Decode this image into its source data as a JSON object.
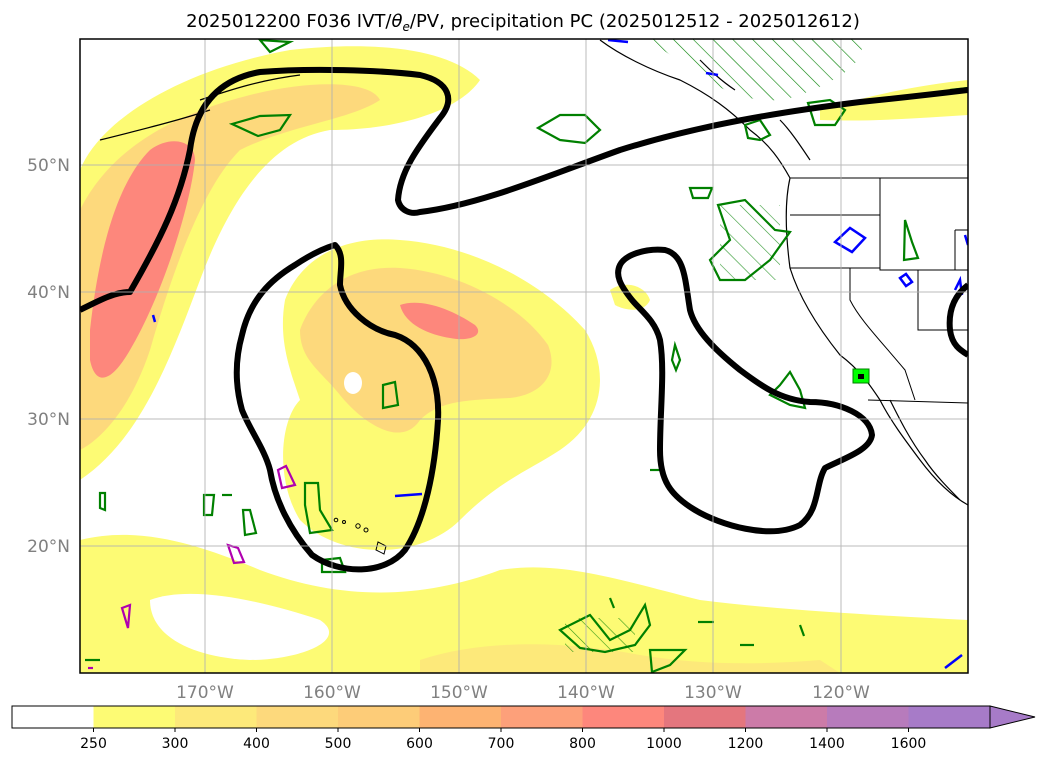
{
  "figure": {
    "title_prefix": "2025012200 F036 IVT/",
    "title_theta": "θ",
    "title_sub": "e",
    "title_suffix": "/PV, precipitation PC (2025012512 - 2025012612)"
  },
  "map": {
    "lon_ticks": [
      "170°W",
      "160°W",
      "150°W",
      "140°W",
      "130°W",
      "120°W"
    ],
    "lat_ticks": [
      "50°N",
      "40°N",
      "30°N",
      "20°N"
    ],
    "grid": true
  },
  "legend": {
    "levels": [
      "250",
      "300",
      "400",
      "500",
      "600",
      "700",
      "800",
      "1000",
      "1200",
      "1400",
      "1600"
    ],
    "colors": [
      "#ffffff",
      "#fdfb74",
      "#fde97a",
      "#fdd97c",
      "#fdcc78",
      "#fdb372",
      "#fda07a",
      "#fd877c",
      "#e4767e",
      "#cc7ba8",
      "#b77bbc",
      "#a77bc8"
    ],
    "extend": "max"
  },
  "colors": {
    "ivt_low": "#fdfb74",
    "ivt_mid": "#fdd97c",
    "ivt_high": "#fd877c",
    "pv_contour": "#000000",
    "precip_green": "#008000",
    "precip_blue": "#0000ff",
    "precip_magenta": "#b000b0",
    "marker_lime": "#00ff00"
  },
  "icons": {
    "hatch": "diagonal-hatch",
    "marker": "square-marker"
  }
}
